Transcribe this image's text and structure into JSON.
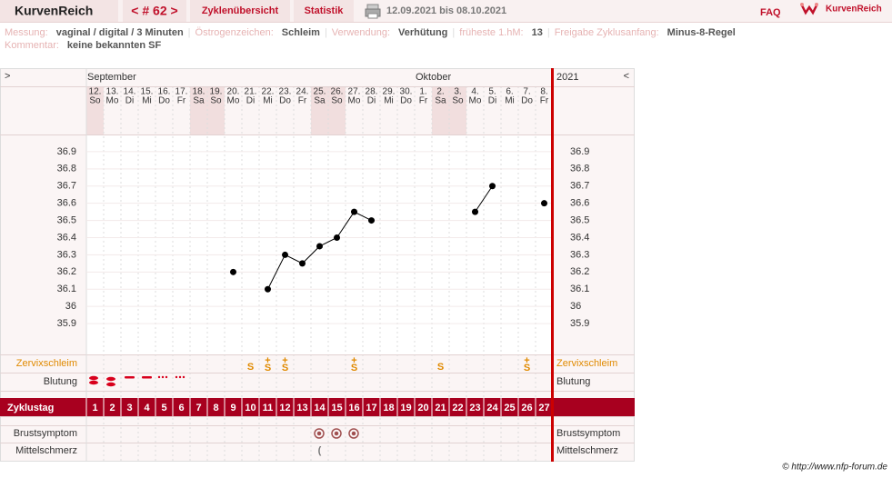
{
  "header": {
    "logo": "KurvenReich",
    "cycle": "< # 62 >",
    "tabs": [
      "Zyklenübersicht",
      "Statistik"
    ],
    "date_range": "12.09.2021 bis 08.10.2021",
    "faq": "FAQ",
    "brand": "KurvenReich"
  },
  "info": {
    "separator": "|",
    "rows": [
      [
        [
          "Messung:",
          "vaginal / digital / 3 Minuten"
        ],
        [
          "Östrogenzeichen:",
          "Schleim"
        ],
        [
          "Verwendung:",
          "Verhütung"
        ],
        [
          "früheste 1.hM:",
          "13"
        ],
        [
          "Freigabe Zyklusanfang:",
          "Minus-8-Regel"
        ]
      ],
      [
        [
          "Kommentar:",
          "keine bekannten SF"
        ]
      ]
    ]
  },
  "chart_data": {
    "type": "line",
    "nav": [
      ">",
      "<"
    ],
    "year": "2021",
    "months": [
      "September",
      null,
      null,
      null,
      null,
      null,
      null,
      null,
      null,
      null,
      null,
      null,
      null,
      null,
      null,
      null,
      null,
      null,
      null,
      "Oktober",
      null,
      null,
      null,
      null,
      null,
      null,
      null
    ],
    "dates": [
      "12.",
      "13.",
      "14.",
      "15.",
      "16.",
      "17.",
      "18.",
      "19.",
      "20.",
      "21.",
      "22.",
      "23.",
      "24.",
      "25.",
      "26.",
      "27.",
      "28.",
      "29.",
      "30.",
      "1.",
      "2.",
      "3.",
      "4.",
      "5.",
      "6.",
      "7.",
      "8."
    ],
    "weekdays": [
      "So",
      "Mo",
      "Di",
      "Mi",
      "Do",
      "Fr",
      "Sa",
      "So",
      "Mo",
      "Di",
      "Mi",
      "Do",
      "Fr",
      "Sa",
      "So",
      "Mo",
      "Di",
      "Mi",
      "Do",
      "Fr",
      "Sa",
      "So",
      "Mo",
      "Di",
      "Mi",
      "Do",
      "Fr"
    ],
    "category_label": "Zyklustag",
    "categories": [
      1,
      2,
      3,
      4,
      5,
      6,
      7,
      8,
      9,
      10,
      11,
      12,
      13,
      14,
      15,
      16,
      17,
      18,
      19,
      20,
      21,
      22,
      23,
      24,
      25,
      26,
      27
    ],
    "values": [
      null,
      null,
      null,
      null,
      null,
      null,
      null,
      null,
      36.2,
      null,
      36.1,
      36.3,
      36.25,
      36.35,
      36.4,
      36.55,
      36.5,
      null,
      null,
      null,
      null,
      null,
      36.55,
      36.7,
      null,
      null,
      36.6
    ],
    "color": "#000000",
    "ylim": [
      35.8,
      37.0
    ],
    "yticks": [
      36.9,
      36.8,
      36.7,
      36.6,
      36.5,
      36.4,
      36.3,
      36.2,
      36.1,
      36,
      35.9
    ],
    "grid": true,
    "cervical_mucus": {
      "label": "Zervixschleim",
      "values": [
        null,
        null,
        null,
        null,
        null,
        null,
        null,
        null,
        null,
        "S",
        "+\nS",
        "+\nS",
        null,
        null,
        null,
        "+\nS",
        null,
        null,
        null,
        null,
        "S",
        null,
        null,
        null,
        null,
        "+\nS",
        null
      ]
    },
    "bleeding": {
      "label": "Blutung"
    },
    "breast": {
      "label": "Brustsymptom"
    },
    "mittelschmerz": {
      "label": "Mittelschmerz",
      "values": [
        null,
        null,
        null,
        null,
        null,
        null,
        null,
        null,
        null,
        null,
        null,
        null,
        null,
        "(",
        null,
        null,
        null,
        null,
        null,
        null,
        null,
        null,
        null,
        null,
        null,
        null,
        null
      ]
    }
  },
  "footer": "© http://www.nfp-forum.de"
}
